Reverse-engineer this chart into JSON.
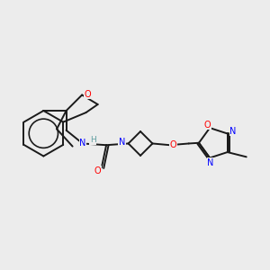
{
  "background_color": "#ececec",
  "mol_color": "#1a1a1a",
  "red": "#ff0000",
  "blue": "#0000ff",
  "teal": "#5f9ea0",
  "lw": 1.4,
  "fs": 7.0,
  "xlim": [
    0,
    10
  ],
  "ylim": [
    0,
    10
  ]
}
